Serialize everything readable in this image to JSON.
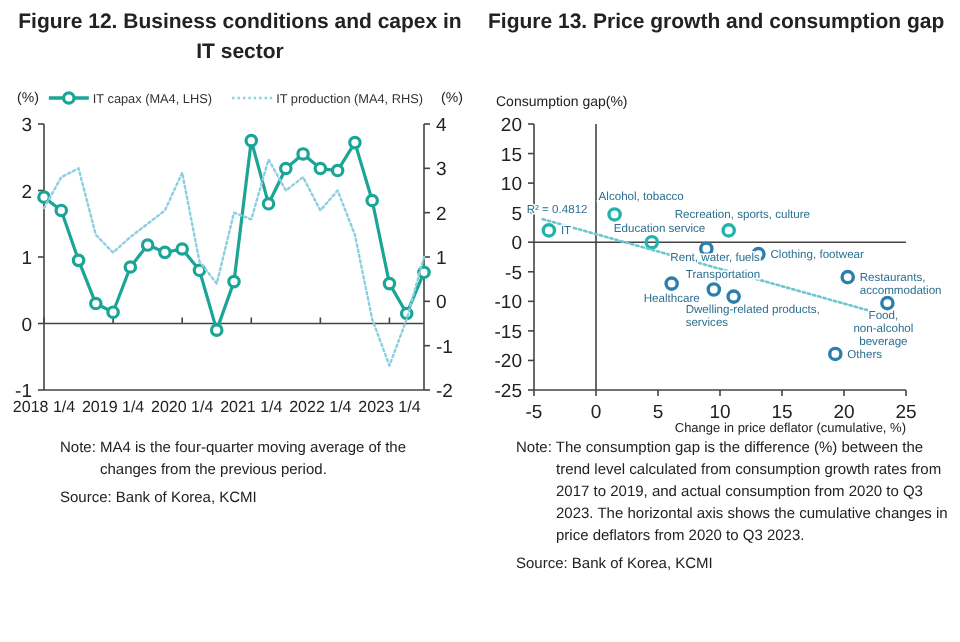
{
  "chart_data": [
    {
      "type": "line",
      "title": "Figure 12. Business conditions and capex in IT sector",
      "ylabel": "(%)",
      "y2label": "(%)",
      "categories": [
        "2018 1/4",
        null,
        null,
        null,
        "2019 1/4",
        null,
        null,
        null,
        "2020 1/4",
        null,
        null,
        null,
        "2021 1/4",
        null,
        null,
        null,
        "2022 1/4",
        null,
        null,
        null,
        "2023 1/4",
        null,
        null
      ],
      "series": [
        {
          "name": "IT capax (MA4, LHS)",
          "color": "#1aa596",
          "marker": "circle",
          "line_style": "solid",
          "values": [
            1.9,
            1.7,
            0.95,
            0.3,
            0.17,
            0.85,
            1.18,
            1.07,
            1.12,
            0.8,
            -0.1,
            0.63,
            2.75,
            1.8,
            2.33,
            2.55,
            2.33,
            2.3,
            2.72,
            1.85,
            0.6,
            0.15,
            0.77
          ]
        },
        {
          "name": "IT production (MA4, RHS)",
          "color": "#8ccfe0",
          "axis": "y2",
          "marker": "none",
          "line_style": "dotted",
          "values": [
            2.1,
            2.8,
            3.0,
            1.5,
            1.1,
            1.45,
            1.75,
            2.05,
            2.9,
            0.9,
            0.4,
            2.0,
            1.85,
            3.2,
            2.5,
            2.8,
            2.05,
            2.5,
            1.5,
            -0.4,
            -1.45,
            -0.4,
            1.0
          ]
        }
      ],
      "ylim": [
        -1,
        3
      ],
      "yticks": [
        -1,
        0,
        1,
        2,
        3
      ],
      "ref_lines": [
        {
          "axis": "y",
          "value": 0,
          "color": "#444444"
        }
      ],
      "y2lim": [
        -2,
        4
      ],
      "y2ticks": [
        -2,
        -1,
        0,
        1,
        2,
        3,
        4
      ],
      "grid": false,
      "legend": "top",
      "annotations": [
        "Note: MA4 is the four-quarter moving average of the changes from the previous period.",
        "Source: Bank of Korea, KCMI"
      ]
    },
    {
      "type": "scatter",
      "title": "Figure 13. Price growth and consumption gap",
      "ylabel": "Consumption gap(%)",
      "xlabel": "Change in price deflator (cumulative, %)",
      "series": [
        {
          "color": "#22b3aa",
          "x": [
            -3.8,
            1.5,
            4.5,
            10.7
          ],
          "values": [
            2.0,
            4.7,
            0,
            2.0
          ]
        },
        {
          "color": "#2b7fab",
          "x": [
            8.9,
            13.1,
            6.1,
            9.5,
            11.1,
            20.3,
            23.5,
            19.3
          ],
          "values": [
            -1.1,
            -2,
            -7,
            -8,
            -9.2,
            -5.9,
            -10.3,
            -18.9
          ]
        },
        {
          "type": "line",
          "color": "#6cc7cf",
          "line_style": "dotted",
          "marker": "none",
          "x": [
            -4.3,
            23.1
          ],
          "values": [
            3.9,
            -12.2
          ]
        }
      ],
      "xlim": [
        -5,
        25
      ],
      "xticks": [
        -5,
        0,
        5,
        10,
        15,
        20,
        25
      ],
      "ylim": [
        -25,
        20
      ],
      "yticks": [
        -25,
        -20,
        -15,
        -10,
        -5,
        0,
        5,
        10,
        15,
        20
      ],
      "ref_lines": [
        {
          "axis": "y",
          "value": 0,
          "color": "#444444"
        },
        {
          "axis": "x",
          "value": 0,
          "color": "#444444"
        }
      ],
      "grid": false,
      "legend": false,
      "annotations": [
        {
          "text": "IT",
          "x": -3.8,
          "y": 2.0
        },
        {
          "text": "Alcohol, tobacco",
          "x": 1.5,
          "y": 4.7
        },
        {
          "text": "Education service",
          "x": 4.5,
          "y": 0
        },
        {
          "text": "Recreation, sports, culture",
          "x": 10.7,
          "y": 2.0
        },
        {
          "text": "Rent, water, fuels",
          "x": 8.9,
          "y": -1.1
        },
        {
          "text": "Clothing, footwear",
          "x": 13.1,
          "y": -2
        },
        {
          "text": "Healthcare",
          "x": 6.1,
          "y": -7
        },
        {
          "text": "Transportation",
          "x": 9.5,
          "y": -8
        },
        {
          "text": "Dwelling-related products, services",
          "x": 11.1,
          "y": -9.2
        },
        {
          "text": "Restaurants, accommodation",
          "x": 20.3,
          "y": -5.9
        },
        {
          "text": "Food, non-alcohol beverage",
          "x": 23.5,
          "y": -10.3
        },
        {
          "text": "Others",
          "x": 19.3,
          "y": -18.9
        },
        {
          "text": "R² = 0.4812",
          "x": -4.3,
          "y": 3.9
        },
        "Note: The consumption gap is the difference (%) between the trend level calculated from consumption growth rates from 2017 to 2019, and actual consumption from 2020 to Q3 2023. The horizontal axis shows the cumulative changes in price deflators from 2020 to Q3 2023.",
        "Source: Bank of Korea, KCMI"
      ]
    }
  ]
}
